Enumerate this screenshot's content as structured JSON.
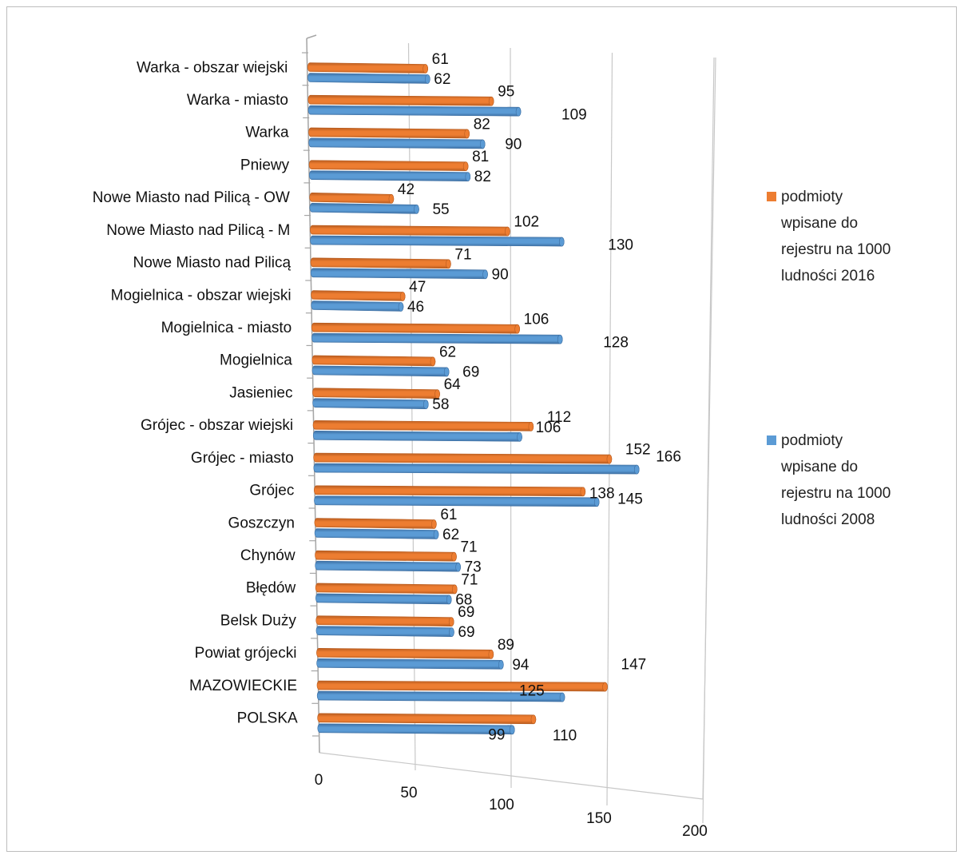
{
  "chart_data": {
    "type": "bar",
    "orientation": "horizontal",
    "categories": [
      "Warka - obszar wiejski",
      "Warka - miasto",
      "Warka",
      "Pniewy",
      "Nowe Miasto nad Pilicą - OW",
      "Nowe Miasto nad Pilicą - M",
      "Nowe Miasto nad Pilicą",
      "Mogielnica - obszar wiejski",
      "Mogielnica - miasto",
      "Mogielnica",
      "Jasieniec",
      "Grójec - obszar wiejski",
      "Grójec - miasto",
      "Grójec",
      "Goszczyn",
      "Chynów",
      "Błędów",
      "Belsk Duży",
      "Powiat grójecki",
      "MAZOWIECKIE",
      "POLSKA"
    ],
    "series": [
      {
        "name": "podmioty wpisane do rejestru na 1000 ludności 2016",
        "color": "#ed7d31",
        "values": [
          61,
          95,
          82,
          81,
          42,
          102,
          71,
          47,
          106,
          62,
          64,
          112,
          152,
          138,
          61,
          71,
          71,
          69,
          89,
          147,
          110
        ]
      },
      {
        "name": "podmioty wpisane do rejestru na 1000 ludności 2008",
        "color": "#5b9bd5",
        "values": [
          62,
          109,
          90,
          82,
          55,
          130,
          90,
          46,
          128,
          69,
          58,
          106,
          166,
          145,
          62,
          73,
          68,
          69,
          94,
          125,
          99
        ]
      }
    ],
    "xlim": [
      0,
      200
    ],
    "xticks": [
      "0",
      "50",
      "100",
      "150",
      "200"
    ],
    "grid": true,
    "legend_position": "right",
    "legend": {
      "item_2016": [
        "podmioty",
        "wpisane do",
        "rejestru na 1000",
        "ludności 2016"
      ],
      "item_2008": [
        "podmioty",
        "wpisane do",
        "rejestru na 1000",
        "ludności 2008"
      ]
    }
  }
}
